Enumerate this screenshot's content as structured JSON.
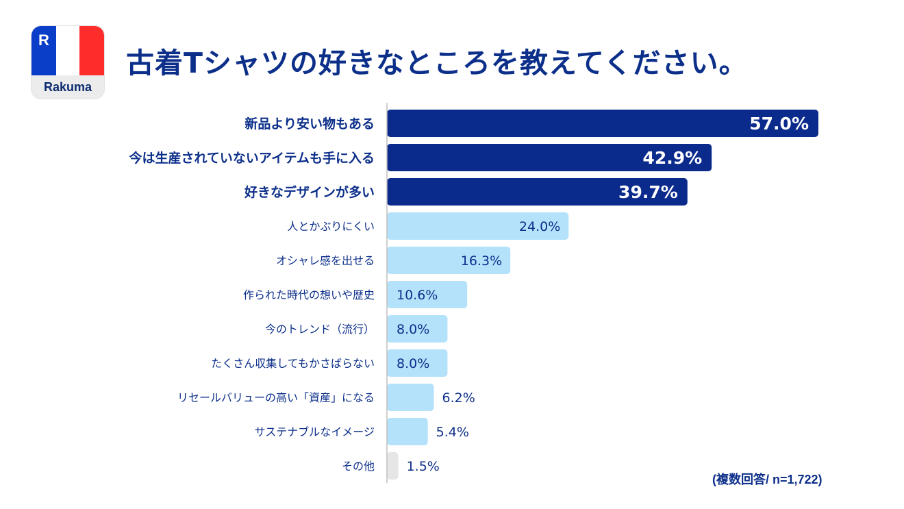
{
  "header": {
    "title": "古着Tシャツの好きなところを教えてください。",
    "logo_text": "Rakuma",
    "logo_mark": "R"
  },
  "note": "(複数回答/ n=1,722)",
  "colors": {
    "highlight_bar": "#0b2b8c",
    "normal_bar": "#b4e2fb",
    "other_bar": "#e6e6e6",
    "label_text": "#0c2f8a"
  },
  "chart_data": {
    "type": "bar",
    "orientation": "horizontal",
    "unit": "%",
    "categories": [
      "新品より安い物もある",
      "今は生産されていないアイテムも手に入る",
      "好きなデザインが多い",
      "人とかぶりにくい",
      "オシャレ感を出せる",
      "作られた時代の想いや歴史",
      "今のトレンド（流行）",
      "たくさん収集してもかさばらない",
      "リセールバリューの高い「資産」になる",
      "サステナブルなイメージ",
      "その他"
    ],
    "values": [
      57.0,
      42.9,
      39.7,
      24.0,
      16.3,
      10.6,
      8.0,
      8.0,
      6.2,
      5.4,
      1.5
    ],
    "value_labels": [
      "57.0%",
      "42.9%",
      "39.7%",
      "24.0%",
      "16.3%",
      "10.6%",
      "8.0%",
      "8.0%",
      "6.2%",
      "5.4%",
      "1.5%"
    ],
    "highlighted": [
      true,
      true,
      true,
      false,
      false,
      false,
      false,
      false,
      false,
      false,
      false
    ],
    "xlim": [
      0,
      57.0
    ],
    "grid": false,
    "legend": "none"
  }
}
